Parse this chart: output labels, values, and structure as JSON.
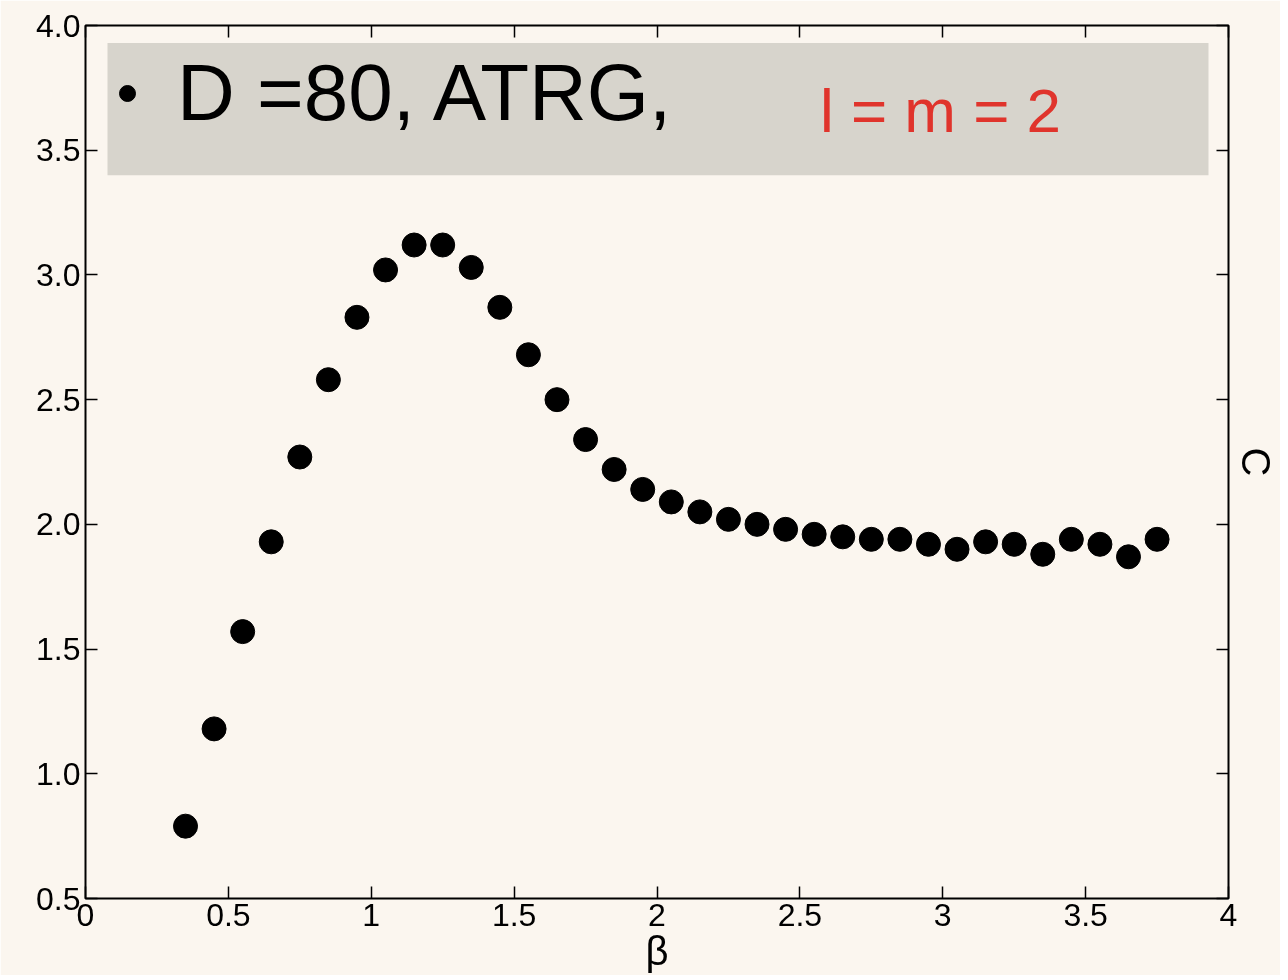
{
  "chart_data": {
    "type": "scatter",
    "xlabel": "β",
    "ylabel": "C",
    "x": [
      0.35,
      0.45,
      0.55,
      0.65,
      0.75,
      0.85,
      0.95,
      1.05,
      1.15,
      1.25,
      1.35,
      1.45,
      1.55,
      1.65,
      1.75,
      1.85,
      1.95,
      2.05,
      2.15,
      2.25,
      2.35,
      2.45,
      2.55,
      2.65,
      2.75,
      2.85,
      2.95,
      3.05,
      3.15,
      3.25,
      3.35,
      3.45,
      3.55,
      3.65,
      3.75
    ],
    "series": [
      {
        "name": "D =80, ATRG,",
        "color": "#000000",
        "values": [
          0.79,
          1.18,
          1.57,
          1.93,
          2.27,
          2.58,
          2.83,
          3.02,
          3.12,
          3.12,
          3.03,
          2.87,
          2.68,
          2.5,
          2.34,
          2.22,
          2.14,
          2.09,
          2.05,
          2.02,
          2.0,
          1.98,
          1.96,
          1.95,
          1.94,
          1.94,
          1.92,
          1.9,
          1.93,
          1.92,
          1.88,
          1.94,
          1.92,
          1.87,
          1.94
        ]
      }
    ],
    "annotations": [
      "l = m = 2"
    ],
    "xlim": [
      0,
      4
    ],
    "ylim": [
      0.5,
      4.0
    ],
    "xticks": [
      0,
      0.5,
      1,
      1.5,
      2,
      2.5,
      3,
      3.5,
      4
    ],
    "yticks": [
      0.5,
      {
        "value": 1.0,
        "label": "1.0"
      },
      1.5,
      {
        "value": 2.0,
        "label": "2.0"
      },
      2.5,
      {
        "value": 3.0,
        "label": "3.0"
      },
      3.5,
      {
        "value": 4.0,
        "label": "4.0"
      }
    ],
    "marker": "circle",
    "legend": "top",
    "grid": false
  }
}
